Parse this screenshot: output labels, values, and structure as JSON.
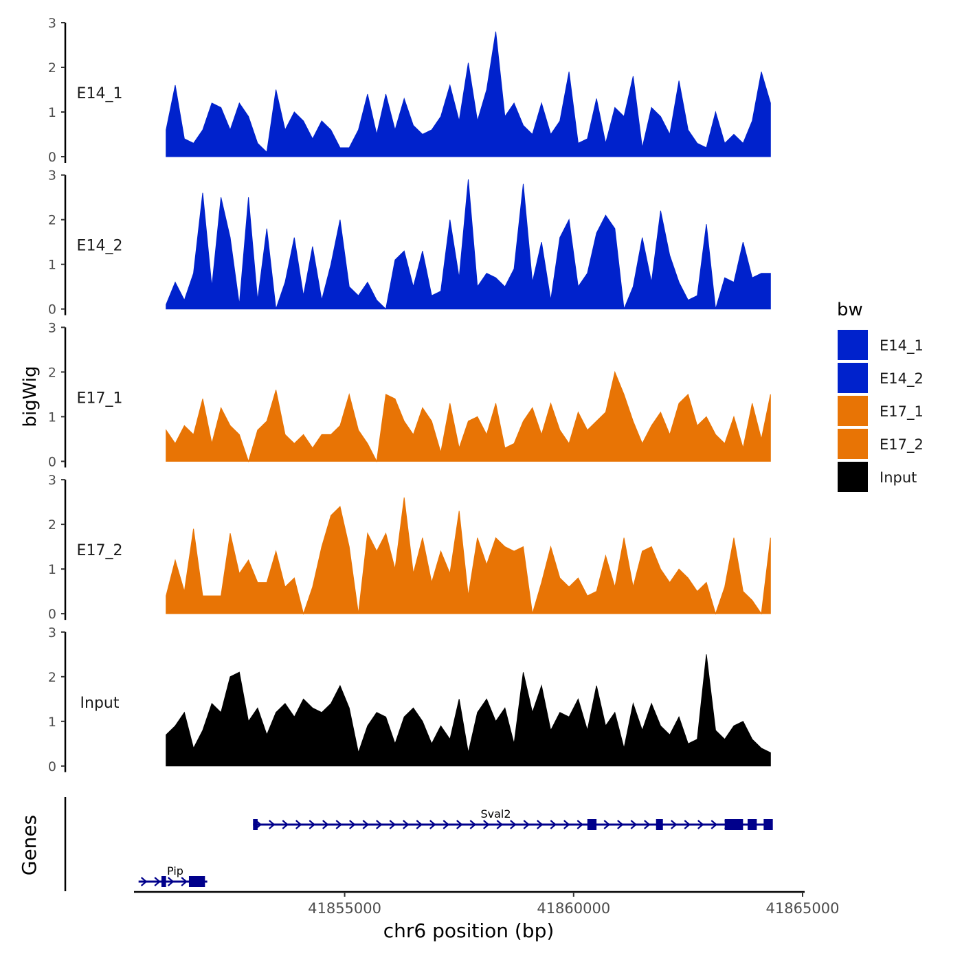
{
  "chart_data": {
    "type": "area",
    "ylabel": "bigWig",
    "xlabel": "chr6 position (bp)",
    "genes_label": "Genes",
    "legend_title": "bw",
    "legend_position": "right",
    "xlim": [
      41850400,
      41865000
    ],
    "ylim": [
      0,
      3
    ],
    "y_ticks": [
      0,
      1,
      2,
      3
    ],
    "x_ticks": [
      41855000,
      41860000,
      41865000
    ],
    "x_tick_labels": [
      "41855000",
      "41860000",
      "41865000"
    ],
    "colors": {
      "E14_1": "#0022CC",
      "E14_2": "#0022CC",
      "E17_1": "#E87405",
      "E17_2": "#E87405",
      "Input": "#000000",
      "genes": "#00008B"
    },
    "legend": [
      {
        "name": "E14_1",
        "color": "#0022CC"
      },
      {
        "name": "E14_2",
        "color": "#0022CC"
      },
      {
        "name": "E17_1",
        "color": "#E87405"
      },
      {
        "name": "E17_2",
        "color": "#E87405"
      },
      {
        "name": "Input",
        "color": "#000000"
      }
    ],
    "x": [
      41851100,
      41851300,
      41851500,
      41851700,
      41851900,
      41852100,
      41852300,
      41852500,
      41852700,
      41852900,
      41853100,
      41853300,
      41853500,
      41853700,
      41853900,
      41854100,
      41854300,
      41854500,
      41854700,
      41854900,
      41855100,
      41855300,
      41855500,
      41855700,
      41855900,
      41856100,
      41856300,
      41856500,
      41856700,
      41856900,
      41857100,
      41857300,
      41857500,
      41857700,
      41857900,
      41858100,
      41858300,
      41858500,
      41858700,
      41858900,
      41859100,
      41859300,
      41859500,
      41859700,
      41859900,
      41860100,
      41860300,
      41860500,
      41860700,
      41860900,
      41861100,
      41861300,
      41861500,
      41861700,
      41861900,
      41862100,
      41862300,
      41862500,
      41862700,
      41862900,
      41863100,
      41863300,
      41863500,
      41863700,
      41863900,
      41864100,
      41864300
    ],
    "series": [
      {
        "name": "E14_1",
        "values": [
          0.6,
          1.6,
          0.4,
          0.3,
          0.6,
          1.2,
          1.1,
          0.6,
          1.2,
          0.9,
          0.3,
          0.1,
          1.5,
          0.6,
          1.0,
          0.8,
          0.4,
          0.8,
          0.6,
          0.2,
          0.2,
          0.6,
          1.4,
          0.5,
          1.4,
          0.6,
          1.3,
          0.7,
          0.5,
          0.6,
          0.9,
          1.6,
          0.8,
          2.1,
          0.8,
          1.5,
          2.8,
          0.9,
          1.2,
          0.7,
          0.5,
          1.2,
          0.5,
          0.8,
          1.9,
          0.3,
          0.4,
          1.3,
          0.3,
          1.1,
          0.9,
          1.8,
          0.2,
          1.1,
          0.9,
          0.5,
          1.7,
          0.6,
          0.3,
          0.2,
          1.0,
          0.3,
          0.5,
          0.3,
          0.8,
          1.9,
          1.2
        ]
      },
      {
        "name": "E14_2",
        "values": [
          0.1,
          0.6,
          0.2,
          0.8,
          2.6,
          0.5,
          2.5,
          1.6,
          0.1,
          2.5,
          0.2,
          1.8,
          0.0,
          0.6,
          1.6,
          0.3,
          1.4,
          0.2,
          1.0,
          2.0,
          0.5,
          0.3,
          0.6,
          0.2,
          0.0,
          1.1,
          1.3,
          0.5,
          1.3,
          0.3,
          0.4,
          2.0,
          0.7,
          2.9,
          0.5,
          0.8,
          0.7,
          0.5,
          0.9,
          2.8,
          0.6,
          1.5,
          0.2,
          1.6,
          2.0,
          0.5,
          0.8,
          1.7,
          2.1,
          1.8,
          0.0,
          0.5,
          1.6,
          0.6,
          2.2,
          1.2,
          0.6,
          0.2,
          0.3,
          1.9,
          0.0,
          0.7,
          0.6,
          1.5,
          0.7,
          0.8,
          0.8
        ]
      },
      {
        "name": "E17_1",
        "values": [
          0.7,
          0.4,
          0.8,
          0.6,
          1.4,
          0.4,
          1.2,
          0.8,
          0.6,
          0.0,
          0.7,
          0.9,
          1.6,
          0.6,
          0.4,
          0.6,
          0.3,
          0.6,
          0.6,
          0.8,
          1.5,
          0.7,
          0.4,
          0.0,
          1.5,
          1.4,
          0.9,
          0.6,
          1.2,
          0.9,
          0.2,
          1.3,
          0.3,
          0.9,
          1.0,
          0.6,
          1.3,
          0.3,
          0.4,
          0.9,
          1.2,
          0.6,
          1.3,
          0.7,
          0.4,
          1.1,
          0.7,
          0.9,
          1.1,
          2.0,
          1.5,
          0.9,
          0.4,
          0.8,
          1.1,
          0.6,
          1.3,
          1.5,
          0.8,
          1.0,
          0.6,
          0.4,
          1.0,
          0.3,
          1.3,
          0.5,
          1.5
        ]
      },
      {
        "name": "E17_2",
        "values": [
          0.4,
          1.2,
          0.5,
          1.9,
          0.4,
          0.4,
          0.4,
          1.8,
          0.9,
          1.2,
          0.7,
          0.7,
          1.4,
          0.6,
          0.8,
          0.0,
          0.6,
          1.5,
          2.2,
          2.4,
          1.5,
          0.0,
          1.8,
          1.4,
          1.8,
          1.0,
          2.6,
          0.9,
          1.7,
          0.7,
          1.4,
          0.9,
          2.3,
          0.4,
          1.7,
          1.1,
          1.7,
          1.5,
          1.4,
          1.5,
          0.0,
          0.7,
          1.5,
          0.8,
          0.6,
          0.8,
          0.4,
          0.5,
          1.3,
          0.6,
          1.7,
          0.6,
          1.4,
          1.5,
          1.0,
          0.7,
          1.0,
          0.8,
          0.5,
          0.7,
          0.0,
          0.6,
          1.7,
          0.5,
          0.3,
          0.0,
          1.7
        ]
      },
      {
        "name": "Input",
        "values": [
          0.7,
          0.9,
          1.2,
          0.4,
          0.8,
          1.4,
          1.2,
          2.0,
          2.1,
          1.0,
          1.3,
          0.7,
          1.2,
          1.4,
          1.1,
          1.5,
          1.3,
          1.2,
          1.4,
          1.8,
          1.3,
          0.3,
          0.9,
          1.2,
          1.1,
          0.5,
          1.1,
          1.3,
          1.0,
          0.5,
          0.9,
          0.6,
          1.5,
          0.3,
          1.2,
          1.5,
          1.0,
          1.3,
          0.5,
          2.1,
          1.2,
          1.8,
          0.8,
          1.2,
          1.1,
          1.5,
          0.8,
          1.8,
          0.9,
          1.2,
          0.4,
          1.4,
          0.8,
          1.4,
          0.9,
          0.7,
          1.1,
          0.5,
          0.6,
          2.5,
          0.8,
          0.6,
          0.9,
          1.0,
          0.6,
          0.4,
          0.3
        ]
      }
    ],
    "genes": [
      {
        "name": "Sval2",
        "start": 41853000,
        "end": 41864300,
        "strand": "+",
        "row": 1,
        "exons": [
          [
            41853000,
            41853100
          ],
          [
            41860300,
            41860500
          ],
          [
            41861800,
            41861950
          ],
          [
            41863300,
            41863700
          ],
          [
            41863800,
            41864000
          ],
          [
            41864150,
            41864350
          ]
        ]
      },
      {
        "name": "Pip",
        "start": 41850500,
        "end": 41852000,
        "strand": "+",
        "row": 2,
        "exons": [
          [
            41851000,
            41851100
          ],
          [
            41851600,
            41851950
          ]
        ]
      }
    ]
  }
}
